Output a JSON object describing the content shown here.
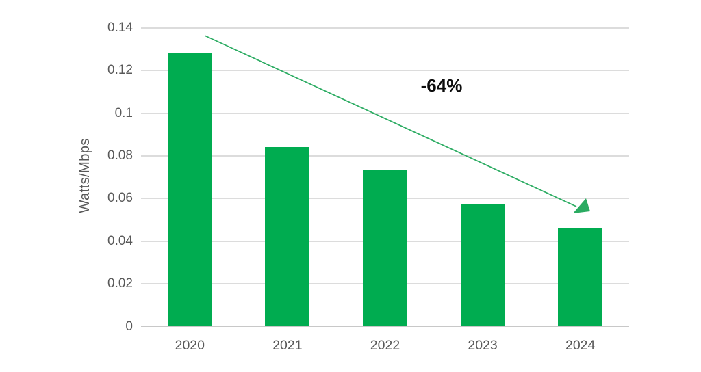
{
  "chart_data": {
    "type": "bar",
    "title": "",
    "categories": [
      "2020",
      "2021",
      "2022",
      "2023",
      "2024"
    ],
    "values": [
      0.1285,
      0.0843,
      0.0733,
      0.0575,
      0.0464
    ],
    "xlabel": "",
    "ylabel": "Watts/Mbps",
    "ylim": [
      0,
      0.14
    ],
    "yticks": [
      0,
      0.02,
      0.04,
      0.06,
      0.08,
      0.1,
      0.12,
      0.14
    ],
    "ytick_labels": [
      "0",
      "0.02",
      "0.04",
      "0.06",
      "0.08",
      "0.1",
      "0.12",
      "0.14"
    ],
    "grid": true,
    "legend_position": "none",
    "bar_color": "#00ac50",
    "gridline_color": "#dcdcdc",
    "axis_text_color": "#595959",
    "annotation": {
      "text": "-64%",
      "text_color": "#0d0d0d",
      "arrow_color": "#2aab61",
      "arrow_from_category": "2020",
      "arrow_to_category": "2024"
    }
  }
}
